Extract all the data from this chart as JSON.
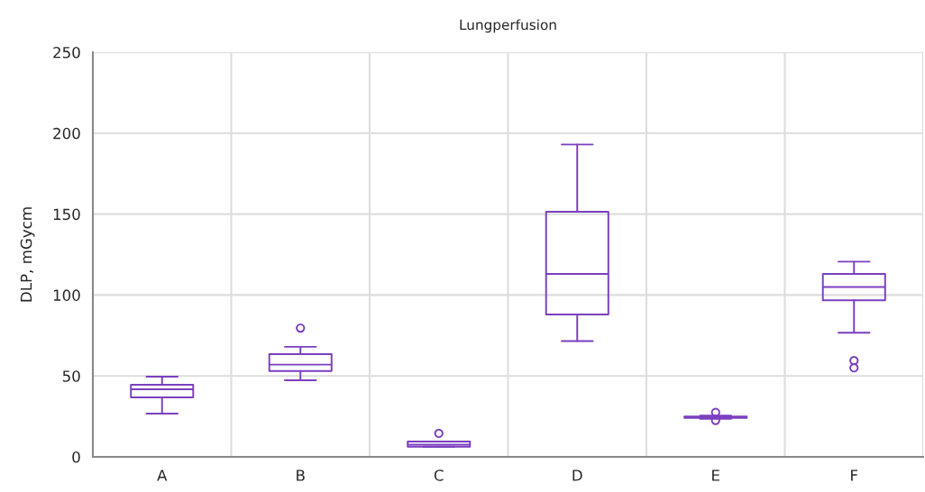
{
  "chart_data": {
    "type": "box",
    "title": "Lungperfusion",
    "ylabel": "DLP, mGycm",
    "categories": [
      "A",
      "B",
      "C",
      "D",
      "E",
      "F"
    ],
    "color": "#7b3fbf",
    "ylim": [
      0,
      250
    ],
    "yticks": [
      0,
      50,
      100,
      150,
      200,
      250
    ],
    "grid": true,
    "boxes": [
      {
        "low": 26.7,
        "q1": 36.7,
        "median": 41.8,
        "q3": 44.5,
        "high": 49.6
      },
      {
        "low": 47.3,
        "q1": 53,
        "median": 57,
        "q3": 63.5,
        "high": 68,
        "outliers": [
          79.6
        ]
      },
      {
        "low": 6.3,
        "q1": 6.3,
        "median": 7.5,
        "q3": 9.5,
        "high": 9.5,
        "outliers": [
          14.5
        ]
      },
      {
        "low": 71.6,
        "q1": 88,
        "median": 113,
        "q3": 151.5,
        "high": 193
      },
      {
        "low": 23.5,
        "q1": 24,
        "median": 24.5,
        "q3": 25,
        "high": 25.5,
        "outliers": [
          27.5,
          22.5
        ]
      },
      {
        "low": 76.7,
        "q1": 96.7,
        "median": 105,
        "q3": 113,
        "high": 120.6,
        "outliers": [
          59.5,
          55
        ]
      }
    ]
  }
}
